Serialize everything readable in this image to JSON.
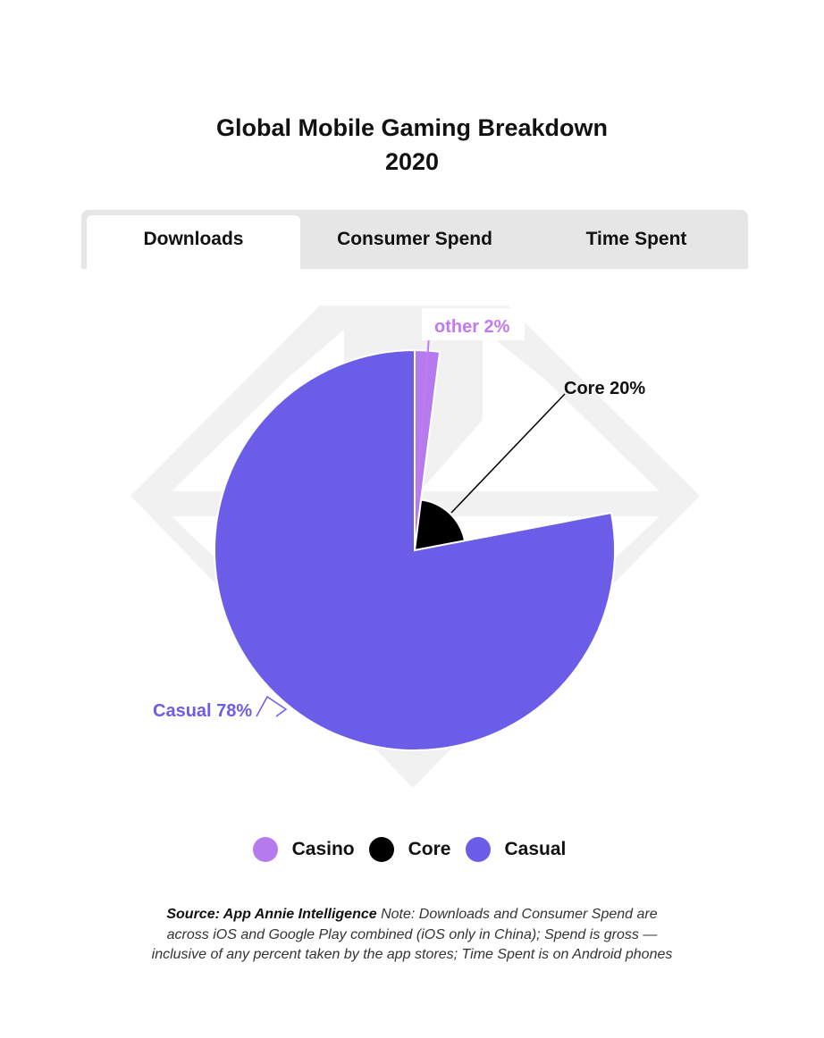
{
  "title_line1": "Global Mobile Gaming Breakdown",
  "title_line2": "2020",
  "tabs": [
    {
      "label": "Downloads",
      "active": true
    },
    {
      "label": "Consumer Spend",
      "active": false
    },
    {
      "label": "Time Spent",
      "active": false
    }
  ],
  "chart_data": {
    "type": "pie",
    "title": "Global Mobile Gaming Breakdown 2020",
    "slices": [
      {
        "name": "Casino",
        "label": "other 2%",
        "value": 2,
        "color": "#b57bee",
        "label_color": "#c379f0"
      },
      {
        "name": "Core",
        "label": "Core 20%",
        "value": 20,
        "color": "#000000",
        "label_color": "#111111"
      },
      {
        "name": "Casual",
        "label": "Casual 78%",
        "value": 78,
        "color": "#6b5de8",
        "label_color": "#6b5de8"
      }
    ],
    "legend_position": "bottom",
    "legend": [
      "Casino",
      "Core",
      "Casual"
    ]
  },
  "legend": [
    {
      "label": "Casino",
      "color": "#b57bee"
    },
    {
      "label": "Core",
      "color": "#000000"
    },
    {
      "label": "Casual",
      "color": "#6b5de8"
    }
  ],
  "footnote": {
    "source": "Source: App Annie Intelligence",
    "note": " Note: Downloads and Consumer Spend are across iOS and Google Play combined (iOS only in China); Spend is gross — inclusive of any percent taken by the app stores; Time Spent is on Android phones"
  },
  "icons": {
    "watermark": "diamond-logo-watermark"
  }
}
